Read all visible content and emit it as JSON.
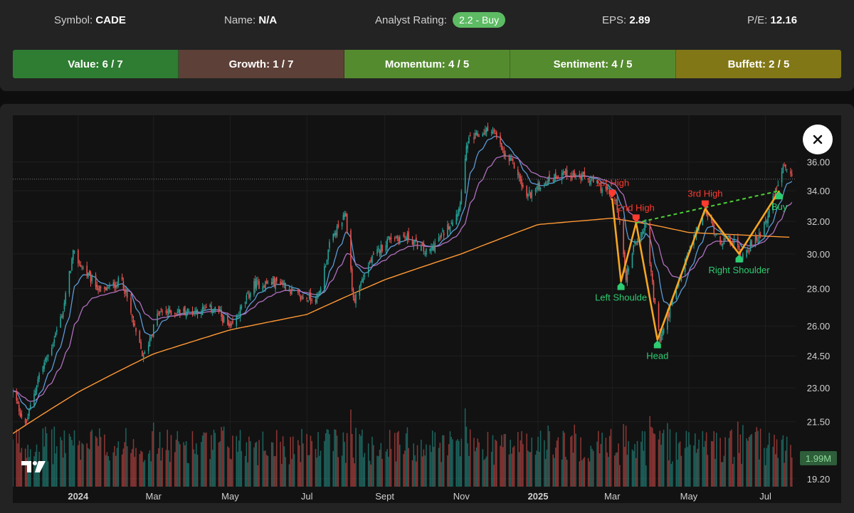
{
  "header": {
    "symbol_label": "Symbol:",
    "symbol": "CADE",
    "name_label": "Name:",
    "name": "N/A",
    "rating_label": "Analyst Rating:",
    "rating": "2.2 - Buy",
    "eps_label": "EPS:",
    "eps": "2.89",
    "pe_label": "P/E:",
    "pe": "12.16"
  },
  "scores": [
    {
      "label": "Value: 6 / 7",
      "color": "#2e7d32"
    },
    {
      "label": "Growth: 1 / 7",
      "color": "#5d4037"
    },
    {
      "label": "Momentum: 4 / 5",
      "color": "#558b2f"
    },
    {
      "label": "Sentiment: 4 / 5",
      "color": "#558b2f"
    },
    {
      "label": "Buffett: 2 / 5",
      "color": "#827717"
    }
  ],
  "close_icon": "x-close-icon",
  "logo": "tradingview-logo",
  "chart_data": {
    "type": "candlestick",
    "x_ticks": [
      {
        "label": "2024",
        "date": "2024-01-01",
        "bold": true
      },
      {
        "label": "Mar",
        "date": "2024-03-01"
      },
      {
        "label": "May",
        "date": "2024-05-01"
      },
      {
        "label": "Jul",
        "date": "2024-07-01"
      },
      {
        "label": "Sept",
        "date": "2024-09-01"
      },
      {
        "label": "Nov",
        "date": "2024-11-01"
      },
      {
        "label": "2025",
        "date": "2025-01-01",
        "bold": true
      },
      {
        "label": "Mar",
        "date": "2025-03-01"
      },
      {
        "label": "May",
        "date": "2025-05-01"
      },
      {
        "label": "Jul",
        "date": "2025-07-01"
      }
    ],
    "y_ticks": [
      36.0,
      34.0,
      32.0,
      30.0,
      28.0,
      26.0,
      24.5,
      23.0,
      21.5,
      19.2
    ],
    "y_tick_labels": [
      "36.00",
      "34.00",
      "32.00",
      "30.00",
      "28.00",
      "26.00",
      "24.50",
      "23.00",
      "21.50",
      "19.20"
    ],
    "y_scale": "log",
    "ylim": [
      18.9,
      39.5
    ],
    "x_range": [
      "2023-11-10",
      "2025-07-25"
    ],
    "last_price": 34.8,
    "volume_label": "1.99M",
    "price_anchors": [
      [
        "2023-11-10",
        22.8
      ],
      [
        "2023-11-20",
        21.3
      ],
      [
        "2023-12-01",
        23.6
      ],
      [
        "2023-12-10",
        24.8
      ],
      [
        "2023-12-20",
        26.8
      ],
      [
        "2023-12-28",
        30.0
      ],
      [
        "2024-01-10",
        28.6
      ],
      [
        "2024-01-20",
        27.8
      ],
      [
        "2024-02-05",
        28.5
      ],
      [
        "2024-02-15",
        25.8
      ],
      [
        "2024-02-22",
        24.4
      ],
      [
        "2024-03-05",
        26.7
      ],
      [
        "2024-04-01",
        26.8
      ],
      [
        "2024-04-20",
        26.9
      ],
      [
        "2024-05-01",
        25.8
      ],
      [
        "2024-05-20",
        28.2
      ],
      [
        "2024-06-10",
        28.4
      ],
      [
        "2024-06-25",
        27.5
      ],
      [
        "2024-07-10",
        27.5
      ],
      [
        "2024-07-20",
        30.8
      ],
      [
        "2024-08-01",
        32.4
      ],
      [
        "2024-08-07",
        27.3
      ],
      [
        "2024-08-20",
        29.5
      ],
      [
        "2024-09-05",
        31.0
      ],
      [
        "2024-09-20",
        31.0
      ],
      [
        "2024-10-05",
        30.0
      ],
      [
        "2024-10-20",
        31.5
      ],
      [
        "2024-10-30",
        32.8
      ],
      [
        "2024-11-06",
        37.5
      ],
      [
        "2024-11-25",
        38.5
      ],
      [
        "2024-12-05",
        36.5
      ],
      [
        "2024-12-15",
        35.5
      ],
      [
        "2024-12-22",
        33.6
      ],
      [
        "2025-01-05",
        34.5
      ],
      [
        "2025-01-20",
        35.3
      ],
      [
        "2025-02-10",
        34.8
      ],
      [
        "2025-02-25",
        34.0
      ],
      [
        "2025-03-05",
        33.0
      ],
      [
        "2025-03-12",
        28.6
      ],
      [
        "2025-03-18",
        30.5
      ],
      [
        "2025-03-28",
        31.8
      ],
      [
        "2025-04-03",
        27.5
      ],
      [
        "2025-04-08",
        25.3
      ],
      [
        "2025-04-20",
        27.7
      ],
      [
        "2025-05-01",
        30.2
      ],
      [
        "2025-05-14",
        32.7
      ],
      [
        "2025-05-25",
        30.8
      ],
      [
        "2025-06-05",
        30.8
      ],
      [
        "2025-06-12",
        29.9
      ],
      [
        "2025-06-25",
        31.0
      ],
      [
        "2025-07-05",
        32.8
      ],
      [
        "2025-07-15",
        35.6
      ],
      [
        "2025-07-22",
        34.8
      ]
    ],
    "ema_200_anchors": [
      [
        "2023-11-10",
        21.0
      ],
      [
        "2024-01-01",
        22.8
      ],
      [
        "2024-03-01",
        24.6
      ],
      [
        "2024-05-01",
        25.8
      ],
      [
        "2024-07-01",
        26.6
      ],
      [
        "2024-09-01",
        28.5
      ],
      [
        "2024-11-01",
        30.0
      ],
      [
        "2025-01-01",
        31.8
      ],
      [
        "2025-03-01",
        32.2
      ],
      [
        "2025-04-01",
        31.8
      ],
      [
        "2025-05-01",
        31.3
      ],
      [
        "2025-07-22",
        31.0
      ]
    ],
    "patterns": [
      {
        "name": "head-and-shoulders",
        "lines": [
          [
            [
              "2025-03-01",
              33.5
            ],
            [
              "2025-03-08",
              28.4
            ],
            [
              "2025-03-20",
              31.9
            ],
            [
              "2025-04-06",
              25.3
            ],
            [
              "2025-05-14",
              32.8
            ],
            [
              "2025-06-10",
              30.0
            ],
            [
              "2025-07-12",
              34.0
            ]
          ]
        ],
        "neckline": [
          [
            "2025-03-20",
            31.9
          ],
          [
            "2025-07-12",
            34.0
          ]
        ]
      }
    ],
    "annotations": [
      {
        "text": "1st High",
        "date": "2025-03-01",
        "price": 33.5,
        "kind": "high"
      },
      {
        "text": "2nd High",
        "date": "2025-03-20",
        "price": 31.9,
        "kind": "high"
      },
      {
        "text": "3rd High",
        "date": "2025-05-14",
        "price": 32.8,
        "kind": "high"
      },
      {
        "text": "Left Shoulde",
        "date": "2025-03-08",
        "price": 28.4,
        "kind": "low"
      },
      {
        "text": "Head",
        "date": "2025-04-06",
        "price": 25.3,
        "kind": "low"
      },
      {
        "text": "Right Shoulder",
        "date": "2025-06-10",
        "price": 30.0,
        "kind": "low"
      },
      {
        "text": "Buy",
        "date": "2025-07-12",
        "price": 34.0,
        "kind": "buy"
      }
    ],
    "colors": {
      "up": "#26a69a",
      "down": "#ef5350",
      "ema_fast": "#5b9bd5",
      "ema_mid": "#b070c0",
      "ema_200": "#ff9834",
      "pattern": "#f5a623",
      "neckline": "#4cd137",
      "high_label": "#ff3b30",
      "low_label": "#2ecc71"
    }
  }
}
